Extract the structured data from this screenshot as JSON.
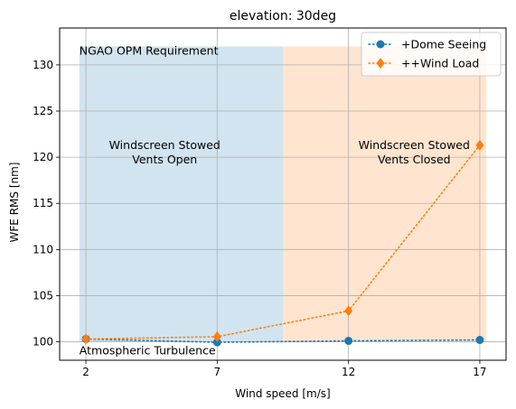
{
  "chart_data": {
    "type": "line",
    "title": "elevation: 30deg",
    "xlabel": "Wind speed [m/s]",
    "ylabel": "WFE RMS [nm]",
    "x": [
      2,
      7,
      12,
      17
    ],
    "xticks": [
      2,
      7,
      12,
      17
    ],
    "yticks": [
      100,
      105,
      110,
      115,
      120,
      125,
      130
    ],
    "xlim": [
      1.0,
      18.0
    ],
    "ylim": [
      98.0,
      134.0
    ],
    "grid": true,
    "legend_placement": "top-right",
    "series": [
      {
        "name": "+Dome Seeing",
        "values": [
          100.3,
          99.95,
          100.1,
          100.2
        ],
        "color": "#1f77b4",
        "marker": "circle",
        "linestyle": "dotted"
      },
      {
        "name": "++Wind Load",
        "values": [
          100.3,
          100.55,
          103.35,
          121.3
        ],
        "color": "#ff7f0e",
        "marker": "diamond",
        "linestyle": "dotted"
      }
    ],
    "regions": [
      {
        "x_range": [
          1.75,
          9.5
        ],
        "y_range": [
          100,
          132
        ],
        "color": "#1f77b4",
        "opacity": 0.2,
        "label_lines": [
          "Windscreen Stowed",
          "Vents Open"
        ],
        "label_x": 5,
        "label_y": 120.9
      },
      {
        "x_range": [
          9.5,
          17.25
        ],
        "y_range": [
          100,
          132
        ],
        "color": "#ff7f0e",
        "opacity": 0.2,
        "label_lines": [
          "Windscreen Stowed",
          "Vents Closed"
        ],
        "label_x": 14.5,
        "label_y": 120.9
      }
    ],
    "annotations": [
      {
        "text": "NGAO OPM Requirement",
        "x": 1.75,
        "y": 132
      },
      {
        "text": "Atmospheric Turbulence",
        "x": 1.75,
        "y": 100
      }
    ]
  }
}
